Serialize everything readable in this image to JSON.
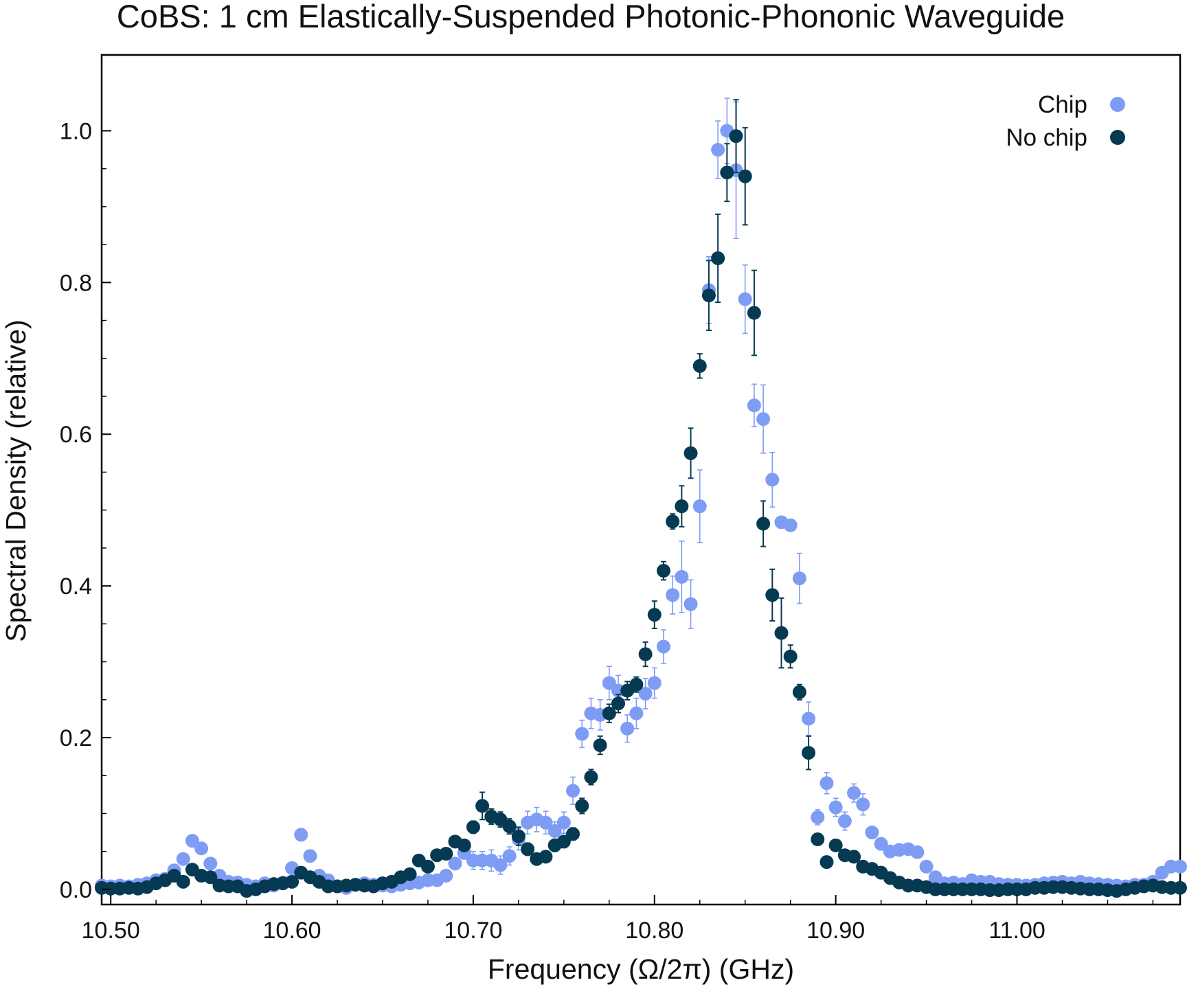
{
  "chart_data": {
    "type": "scatter",
    "title": "CoBS: 1 cm Elastically-Suspended Photonic-Phononic Waveguide",
    "xlabel": "Frequency (Ω/2π) (GHz)",
    "ylabel": "Spectral Density (relative)",
    "xlim": [
      10.495,
      11.09
    ],
    "ylim": [
      -0.02,
      1.1
    ],
    "xticks": [
      10.5,
      10.6,
      10.7,
      10.8,
      10.9,
      11.0
    ],
    "xtick_labels": [
      "10.50",
      "10.60",
      "10.70",
      "10.80",
      "10.90",
      "11.00"
    ],
    "yticks": [
      0.0,
      0.2,
      0.4,
      0.6,
      0.8,
      1.0
    ],
    "ytick_labels": [
      "0.0",
      "0.2",
      "0.4",
      "0.6",
      "0.8",
      "1.0"
    ],
    "grid": false,
    "legend_position": "top-right",
    "series": [
      {
        "name": "Chip",
        "color": "#7f9cf5",
        "x": [
          10.495,
          10.5,
          10.505,
          10.51,
          10.515,
          10.52,
          10.525,
          10.53,
          10.535,
          10.54,
          10.545,
          10.55,
          10.555,
          10.56,
          10.565,
          10.57,
          10.575,
          10.58,
          10.585,
          10.59,
          10.595,
          10.6,
          10.605,
          10.61,
          10.615,
          10.62,
          10.625,
          10.63,
          10.635,
          10.64,
          10.645,
          10.65,
          10.655,
          10.66,
          10.665,
          10.67,
          10.675,
          10.68,
          10.685,
          10.69,
          10.695,
          10.7,
          10.705,
          10.71,
          10.715,
          10.72,
          10.725,
          10.73,
          10.735,
          10.74,
          10.745,
          10.75,
          10.755,
          10.76,
          10.765,
          10.77,
          10.775,
          10.78,
          10.785,
          10.79,
          10.795,
          10.8,
          10.805,
          10.81,
          10.815,
          10.82,
          10.825,
          10.83,
          10.835,
          10.84,
          10.845,
          10.85,
          10.855,
          10.86,
          10.865,
          10.87,
          10.875,
          10.88,
          10.885,
          10.89,
          10.895,
          10.9,
          10.905,
          10.91,
          10.915,
          10.92,
          10.925,
          10.93,
          10.935,
          10.94,
          10.945,
          10.95,
          10.955,
          10.96,
          10.965,
          10.97,
          10.975,
          10.98,
          10.985,
          10.99,
          10.995,
          11.0,
          11.005,
          11.01,
          11.015,
          11.02,
          11.025,
          11.03,
          11.035,
          11.04,
          11.045,
          11.05,
          11.055,
          11.06,
          11.065,
          11.07,
          11.075,
          11.08,
          11.085,
          11.09
        ],
        "y": [
          0.005,
          0.004,
          0.005,
          0.004,
          0.006,
          0.008,
          0.012,
          0.014,
          0.025,
          0.04,
          0.064,
          0.054,
          0.034,
          0.018,
          0.01,
          0.009,
          0.006,
          0.004,
          0.008,
          0.005,
          0.009,
          0.028,
          0.072,
          0.044,
          0.018,
          0.012,
          0.004,
          0.002,
          0.006,
          0.008,
          0.006,
          0.005,
          0.004,
          0.006,
          0.008,
          0.009,
          0.012,
          0.012,
          0.018,
          0.034,
          0.048,
          0.038,
          0.038,
          0.038,
          0.032,
          0.044,
          0.066,
          0.088,
          0.092,
          0.088,
          0.077,
          0.088,
          0.13,
          0.205,
          0.232,
          0.23,
          0.272,
          0.262,
          0.212,
          0.232,
          0.258,
          0.272,
          0.32,
          0.388,
          0.412,
          0.376,
          0.505,
          0.79,
          0.975,
          1.0,
          0.948,
          0.778,
          0.638,
          0.62,
          0.54,
          0.484,
          0.48,
          0.41,
          0.225,
          0.095,
          0.14,
          0.108,
          0.09,
          0.127,
          0.112,
          0.075,
          0.06,
          0.05,
          0.052,
          0.053,
          0.049,
          0.03,
          0.016,
          0.008,
          0.009,
          0.007,
          0.012,
          0.01,
          0.01,
          0.007,
          0.006,
          0.006,
          0.005,
          0.006,
          0.008,
          0.009,
          0.01,
          0.008,
          0.01,
          0.008,
          0.007,
          0.006,
          0.005,
          0.004,
          0.006,
          0.006,
          0.01,
          0.022,
          0.03,
          0.03
        ],
        "err": [
          0.003,
          0.003,
          0.003,
          0.003,
          0.003,
          0.003,
          0.004,
          0.004,
          0.005,
          0.006,
          0.008,
          0.006,
          0.005,
          0.004,
          0.003,
          0.003,
          0.003,
          0.003,
          0.003,
          0.003,
          0.003,
          0.005,
          0.008,
          0.006,
          0.004,
          0.003,
          0.003,
          0.003,
          0.003,
          0.003,
          0.003,
          0.003,
          0.003,
          0.003,
          0.003,
          0.003,
          0.004,
          0.004,
          0.004,
          0.006,
          0.008,
          0.012,
          0.012,
          0.014,
          0.012,
          0.012,
          0.014,
          0.015,
          0.016,
          0.015,
          0.012,
          0.014,
          0.018,
          0.018,
          0.02,
          0.02,
          0.022,
          0.02,
          0.018,
          0.02,
          0.02,
          0.02,
          0.022,
          0.025,
          0.047,
          0.032,
          0.048,
          0.044,
          0.038,
          0.043,
          0.09,
          0.045,
          0.028,
          0.045,
          0.036,
          0.005,
          0.005,
          0.033,
          0.022,
          0.01,
          0.014,
          0.012,
          0.012,
          0.012,
          0.014,
          0.008,
          0.006,
          0.005,
          0.005,
          0.005,
          0.005,
          0.004,
          0.003,
          0.003,
          0.003,
          0.003,
          0.003,
          0.003,
          0.003,
          0.003,
          0.003,
          0.003,
          0.003,
          0.003,
          0.003,
          0.003,
          0.003,
          0.003,
          0.003,
          0.003,
          0.003,
          0.003,
          0.003,
          0.003,
          0.003,
          0.003,
          0.003,
          0.004,
          0.004,
          0.004
        ]
      },
      {
        "name": "No chip",
        "color": "#063a52",
        "x": [
          10.495,
          10.5,
          10.505,
          10.51,
          10.515,
          10.52,
          10.525,
          10.53,
          10.535,
          10.54,
          10.545,
          10.55,
          10.555,
          10.56,
          10.565,
          10.57,
          10.575,
          10.58,
          10.585,
          10.59,
          10.595,
          10.6,
          10.605,
          10.61,
          10.615,
          10.62,
          10.625,
          10.63,
          10.635,
          10.64,
          10.645,
          10.65,
          10.655,
          10.66,
          10.665,
          10.67,
          10.675,
          10.68,
          10.685,
          10.69,
          10.695,
          10.7,
          10.705,
          10.71,
          10.715,
          10.72,
          10.725,
          10.73,
          10.735,
          10.74,
          10.745,
          10.75,
          10.755,
          10.76,
          10.765,
          10.77,
          10.775,
          10.78,
          10.785,
          10.79,
          10.795,
          10.8,
          10.805,
          10.81,
          10.815,
          10.82,
          10.825,
          10.83,
          10.835,
          10.84,
          10.845,
          10.85,
          10.855,
          10.86,
          10.865,
          10.87,
          10.875,
          10.88,
          10.885,
          10.89,
          10.895,
          10.9,
          10.905,
          10.91,
          10.915,
          10.92,
          10.925,
          10.93,
          10.935,
          10.94,
          10.945,
          10.95,
          10.955,
          10.96,
          10.965,
          10.97,
          10.975,
          10.98,
          10.985,
          10.99,
          10.995,
          11.0,
          11.005,
          11.01,
          11.015,
          11.02,
          11.025,
          11.03,
          11.035,
          11.04,
          11.045,
          11.05,
          11.055,
          11.06,
          11.065,
          11.07,
          11.075,
          11.08,
          11.085,
          11.09
        ],
        "y": [
          0.002,
          0.001,
          0.001,
          0.002,
          0.001,
          0.003,
          0.008,
          0.012,
          0.018,
          0.01,
          0.026,
          0.018,
          0.016,
          0.005,
          0.004,
          0.004,
          -0.002,
          0.0,
          0.004,
          0.007,
          0.008,
          0.01,
          0.022,
          0.016,
          0.01,
          0.004,
          0.004,
          0.005,
          0.006,
          0.005,
          0.004,
          0.008,
          0.01,
          0.016,
          0.02,
          0.038,
          0.03,
          0.045,
          0.047,
          0.063,
          0.058,
          0.082,
          0.11,
          0.096,
          0.092,
          0.083,
          0.07,
          0.053,
          0.04,
          0.043,
          0.058,
          0.063,
          0.073,
          0.11,
          0.148,
          0.19,
          0.232,
          0.245,
          0.262,
          0.27,
          0.31,
          0.362,
          0.42,
          0.485,
          0.505,
          0.575,
          0.69,
          0.783,
          0.832,
          0.945,
          0.993,
          0.94,
          0.76,
          0.482,
          0.388,
          0.338,
          0.307,
          0.26,
          0.18,
          0.066,
          0.036,
          0.058,
          0.045,
          0.043,
          0.03,
          0.027,
          0.022,
          0.015,
          0.009,
          0.005,
          0.005,
          0.003,
          0.0,
          0.0,
          0.0,
          0.0,
          0.0,
          0.0,
          -0.001,
          -0.001,
          0.0,
          0.0,
          0.0,
          0.002,
          0.002,
          0.003,
          0.003,
          0.002,
          0.001,
          0.0,
          0.0,
          -0.001,
          -0.002,
          0.0,
          0.002,
          0.004,
          0.005,
          0.003,
          0.002,
          0.002
        ],
        "err": [
          0.002,
          0.002,
          0.002,
          0.002,
          0.002,
          0.002,
          0.003,
          0.003,
          0.004,
          0.003,
          0.004,
          0.004,
          0.003,
          0.002,
          0.002,
          0.002,
          0.002,
          0.002,
          0.002,
          0.002,
          0.002,
          0.002,
          0.004,
          0.003,
          0.003,
          0.002,
          0.002,
          0.002,
          0.002,
          0.002,
          0.002,
          0.002,
          0.002,
          0.003,
          0.003,
          0.004,
          0.004,
          0.005,
          0.005,
          0.006,
          0.006,
          0.008,
          0.018,
          0.01,
          0.01,
          0.01,
          0.012,
          0.008,
          0.006,
          0.006,
          0.008,
          0.008,
          0.008,
          0.01,
          0.01,
          0.012,
          0.012,
          0.012,
          0.012,
          0.01,
          0.016,
          0.018,
          0.012,
          0.01,
          0.027,
          0.033,
          0.016,
          0.046,
          0.058,
          0.038,
          0.048,
          0.064,
          0.056,
          0.03,
          0.034,
          0.046,
          0.015,
          0.01,
          0.022,
          0.006,
          0.004,
          0.006,
          0.004,
          0.004,
          0.003,
          0.003,
          0.003,
          0.002,
          0.002,
          0.002,
          0.002,
          0.002,
          0.002,
          0.002,
          0.002,
          0.002,
          0.002,
          0.002,
          0.002,
          0.002,
          0.002,
          0.002,
          0.002,
          0.002,
          0.002,
          0.002,
          0.002,
          0.002,
          0.002,
          0.002,
          0.002,
          0.002,
          0.002,
          0.002,
          0.002,
          0.002,
          0.002,
          0.002,
          0.002,
          0.002
        ]
      }
    ]
  }
}
